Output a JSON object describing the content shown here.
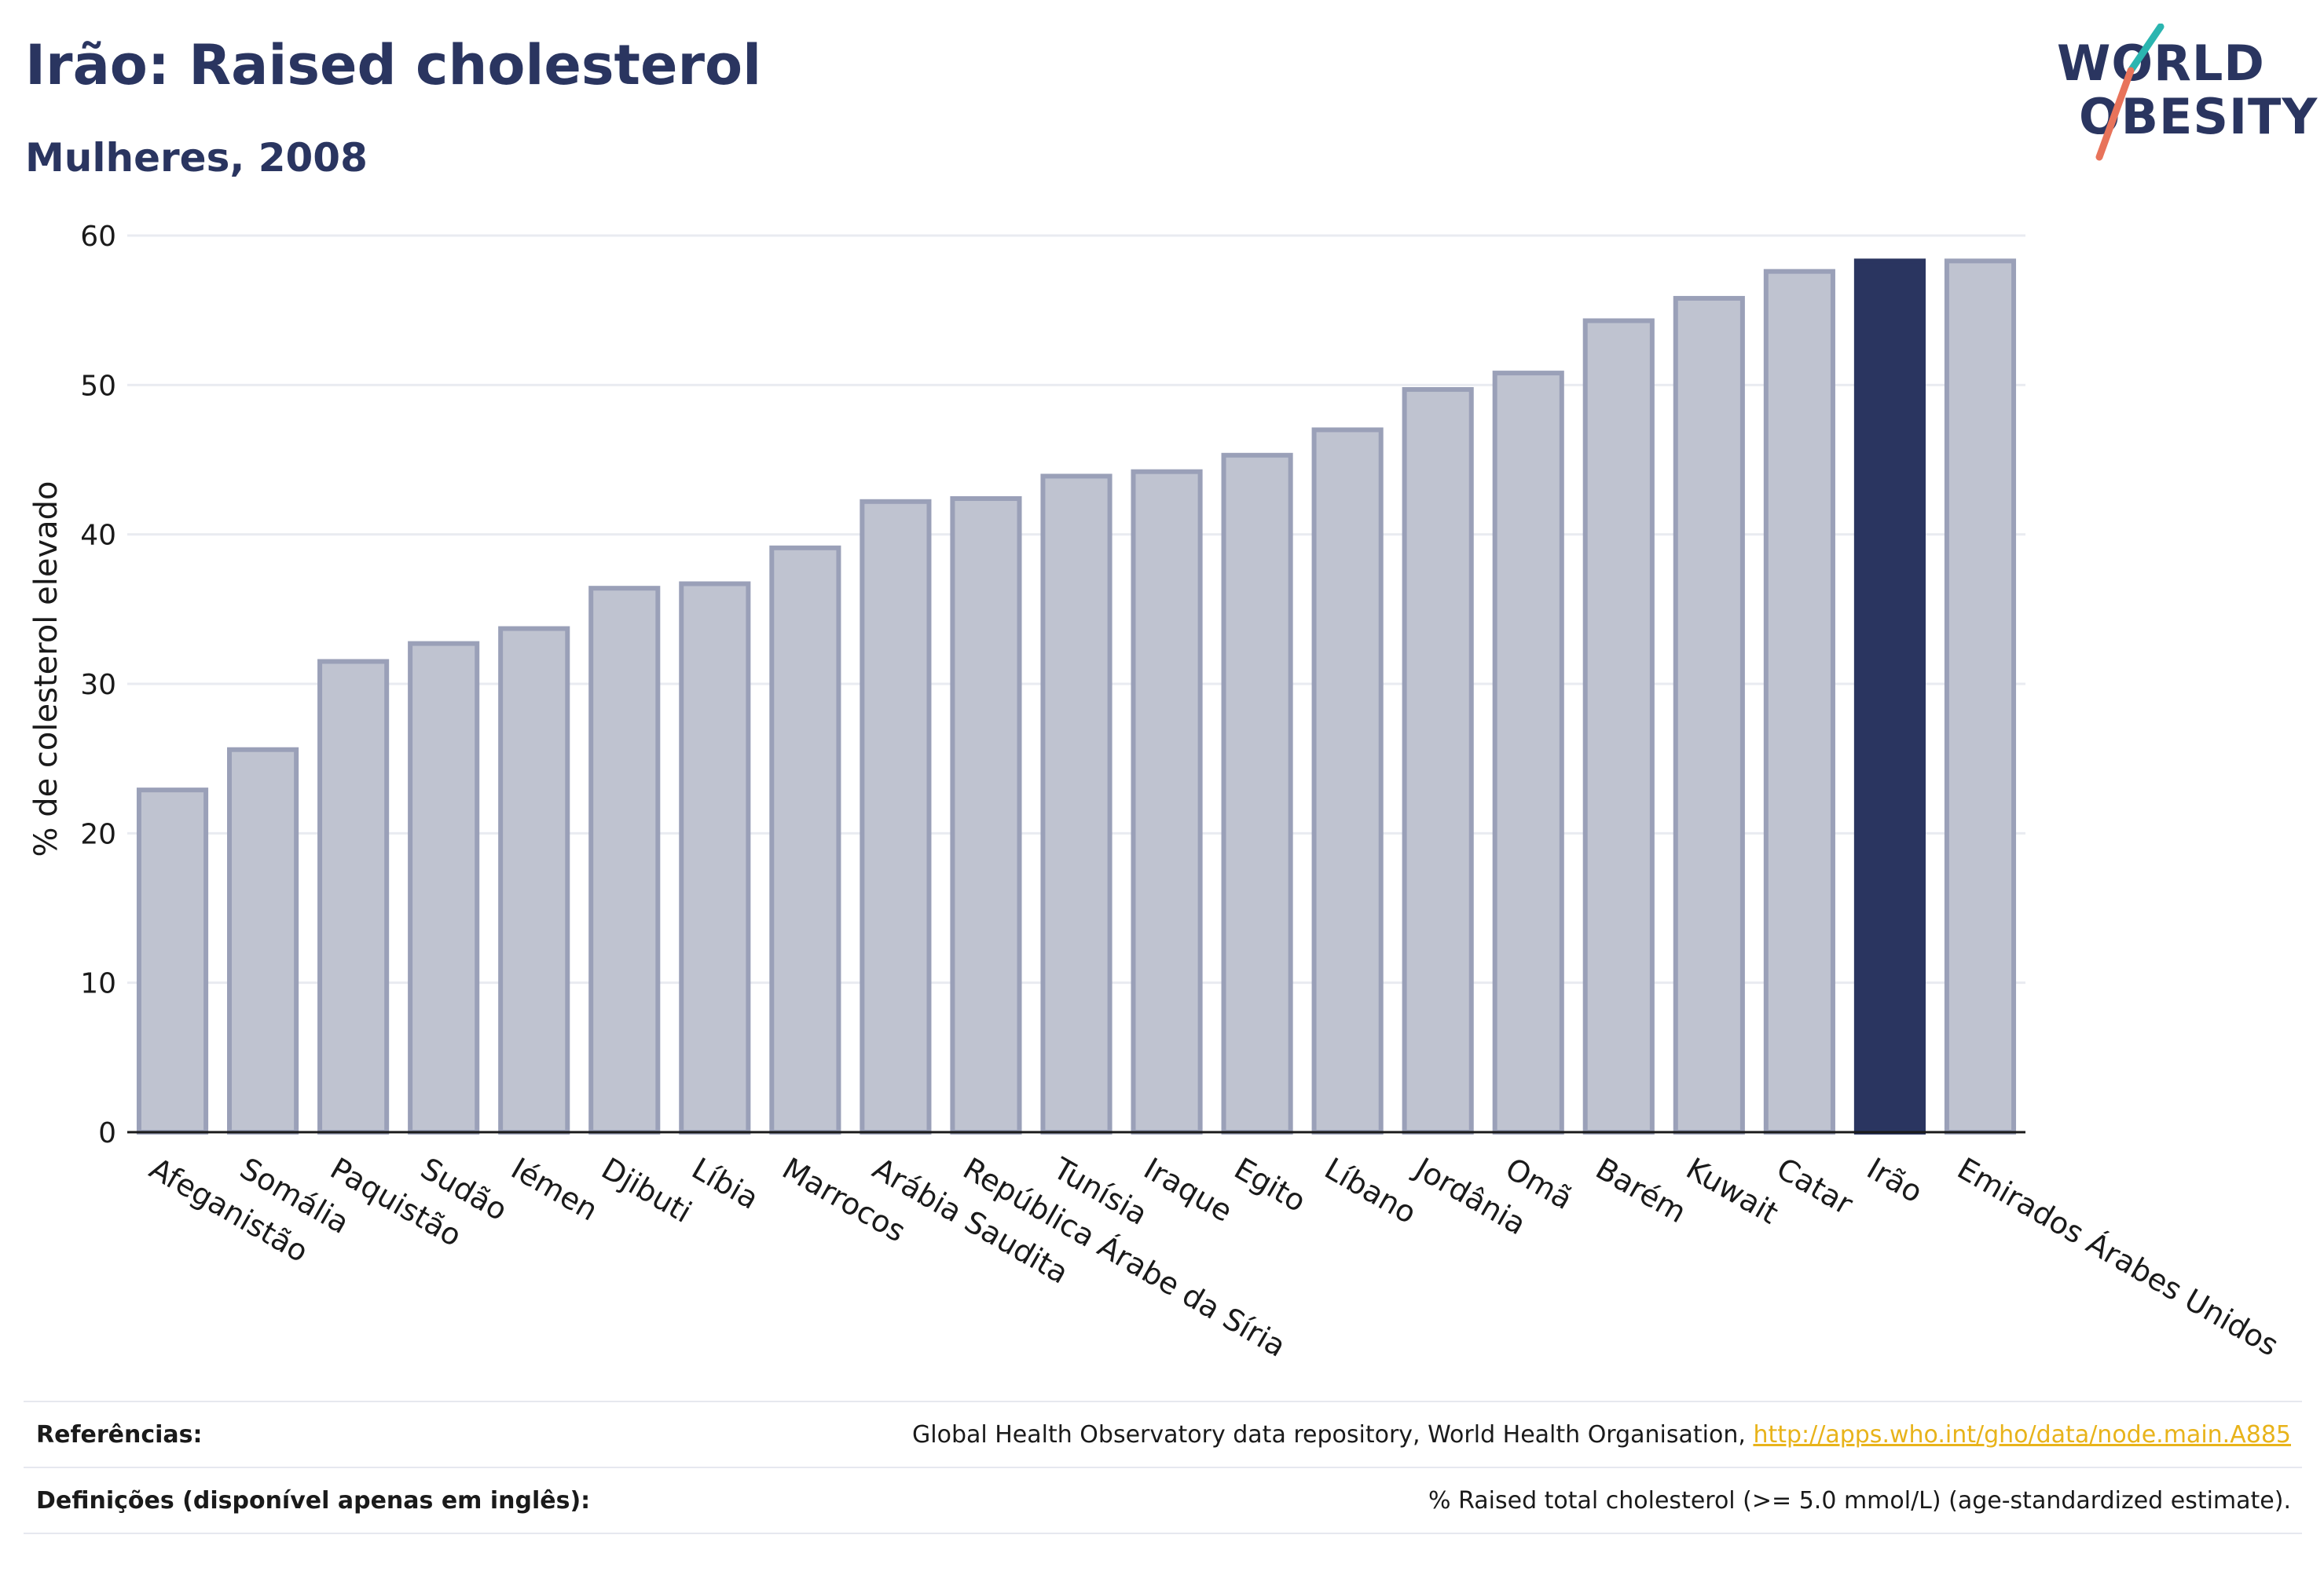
{
  "title": "Irão: Raised cholesterol",
  "subtitle": "Mulheres, 2008",
  "logo": {
    "line1": "WORLD",
    "line2": "OBESITY",
    "colors": [
      "#2a3560",
      "#2bb5b0",
      "#e8735a"
    ]
  },
  "colors": {
    "highlight": "#2a3560",
    "bar_fill": "#bfc3d0",
    "bar_stroke": "#9aa0b8",
    "link": "#e8b31a",
    "grid": "#e9ebf1"
  },
  "chart_data": {
    "type": "bar",
    "title": "",
    "xlabel": "",
    "ylabel": "% de colesterol elevado",
    "ylim": [
      0,
      60
    ],
    "yticks": [
      0,
      10,
      20,
      30,
      40,
      50,
      60
    ],
    "grid": true,
    "highlight": "Irão",
    "categories": [
      "Afeganistão",
      "Somália",
      "Paquistão",
      "Sudão",
      "Iémen",
      "Djibuti",
      "Líbia",
      "Marrocos",
      "Arábia Saudita",
      "República Árabe da Síria",
      "Tunísia",
      "Iraque",
      "Egito",
      "Líbano",
      "Jordânia",
      "Omã",
      "Barém",
      "Kuwait",
      "Catar",
      "Irão",
      "Emirados Árabes Unidos"
    ],
    "values": [
      22.9,
      25.6,
      31.5,
      32.7,
      33.7,
      36.4,
      36.7,
      39.1,
      42.2,
      42.4,
      43.9,
      44.2,
      45.3,
      47.0,
      49.7,
      50.8,
      54.3,
      55.8,
      57.6,
      58.3,
      58.3
    ]
  },
  "footer": {
    "references_label": "Referências:",
    "references_text": "Global Health Observatory data repository, World Health Organisation, ",
    "references_link": "http://apps.who.int/gho/data/node.main.A885",
    "definitions_label": "Definições (disponível apenas em inglês):",
    "definitions_text": "% Raised total cholesterol (>= 5.0 mmol/L) (age-standardized estimate)."
  }
}
